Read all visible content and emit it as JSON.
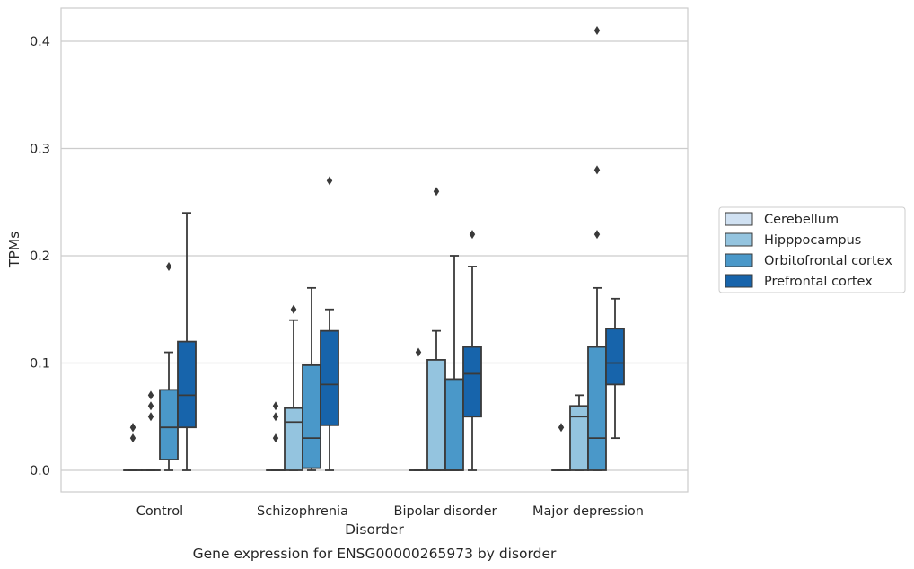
{
  "chart_data": {
    "type": "box",
    "caption": "Gene expression for ENSG00000265973 by disorder",
    "xlabel": "Disorder",
    "ylabel": "TPMs",
    "ylim": [
      -0.02,
      0.43
    ],
    "yticks": [
      0.0,
      0.1,
      0.2,
      0.3,
      0.4
    ],
    "ytick_labels": [
      "0.0",
      "0.1",
      "0.2",
      "0.3",
      "0.4"
    ],
    "grid": "horizontal",
    "legend_position": "right",
    "categories": [
      "Control",
      "Schizophrenia",
      "Bipolar disorder",
      "Major depression"
    ],
    "series": [
      {
        "name": "Cerebellum",
        "color": "#d0e1f2",
        "boxes": [
          {
            "q1": 0.0,
            "median": 0.0,
            "q3": 0.0,
            "whislo": 0.0,
            "whishi": 0.0,
            "fliers": [
              0.03,
              0.04,
              0.04
            ]
          },
          {
            "q1": 0.0,
            "median": 0.0,
            "q3": 0.0,
            "whislo": 0.0,
            "whishi": 0.0,
            "fliers": [
              0.03,
              0.05,
              0.06
            ]
          },
          {
            "q1": 0.0,
            "median": 0.0,
            "q3": 0.0,
            "whislo": 0.0,
            "whishi": 0.0,
            "fliers": [
              0.11
            ]
          },
          {
            "q1": 0.0,
            "median": 0.0,
            "q3": 0.0,
            "whislo": 0.0,
            "whishi": 0.0,
            "fliers": [
              0.04
            ]
          }
        ]
      },
      {
        "name": "Hipppocampus",
        "color": "#94c4df",
        "boxes": [
          {
            "q1": 0.0,
            "median": 0.0,
            "q3": 0.0,
            "whislo": 0.0,
            "whishi": 0.0,
            "fliers": [
              0.05,
              0.06,
              0.07
            ]
          },
          {
            "q1": 0.0,
            "median": 0.045,
            "q3": 0.058,
            "whislo": 0.0,
            "whishi": 0.14,
            "fliers": [
              0.15,
              0.15
            ]
          },
          {
            "q1": 0.0,
            "median": 0.0,
            "q3": 0.103,
            "whislo": 0.0,
            "whishi": 0.13,
            "fliers": [
              0.26
            ]
          },
          {
            "q1": 0.0,
            "median": 0.05,
            "q3": 0.06,
            "whislo": 0.0,
            "whishi": 0.07,
            "fliers": []
          }
        ]
      },
      {
        "name": "Orbitofrontal cortex",
        "color": "#4a98c9",
        "boxes": [
          {
            "q1": 0.01,
            "median": 0.04,
            "q3": 0.075,
            "whislo": 0.0,
            "whishi": 0.11,
            "fliers": [
              0.19
            ]
          },
          {
            "q1": 0.002,
            "median": 0.03,
            "q3": 0.098,
            "whislo": 0.0,
            "whishi": 0.17,
            "fliers": []
          },
          {
            "q1": 0.0,
            "median": 0.0,
            "q3": 0.085,
            "whislo": 0.0,
            "whishi": 0.2,
            "fliers": []
          },
          {
            "q1": 0.0,
            "median": 0.03,
            "q3": 0.115,
            "whislo": 0.0,
            "whishi": 0.17,
            "fliers": [
              0.22,
              0.28,
              0.41
            ]
          }
        ]
      },
      {
        "name": "Prefrontal cortex",
        "color": "#1764ab",
        "boxes": [
          {
            "q1": 0.04,
            "median": 0.07,
            "q3": 0.12,
            "whislo": 0.0,
            "whishi": 0.24,
            "fliers": []
          },
          {
            "q1": 0.042,
            "median": 0.08,
            "q3": 0.13,
            "whislo": 0.0,
            "whishi": 0.15,
            "fliers": [
              0.27
            ]
          },
          {
            "q1": 0.05,
            "median": 0.09,
            "q3": 0.115,
            "whislo": 0.0,
            "whishi": 0.19,
            "fliers": [
              0.22
            ]
          },
          {
            "q1": 0.08,
            "median": 0.1,
            "q3": 0.132,
            "whislo": 0.03,
            "whishi": 0.16,
            "fliers": []
          }
        ]
      }
    ]
  }
}
